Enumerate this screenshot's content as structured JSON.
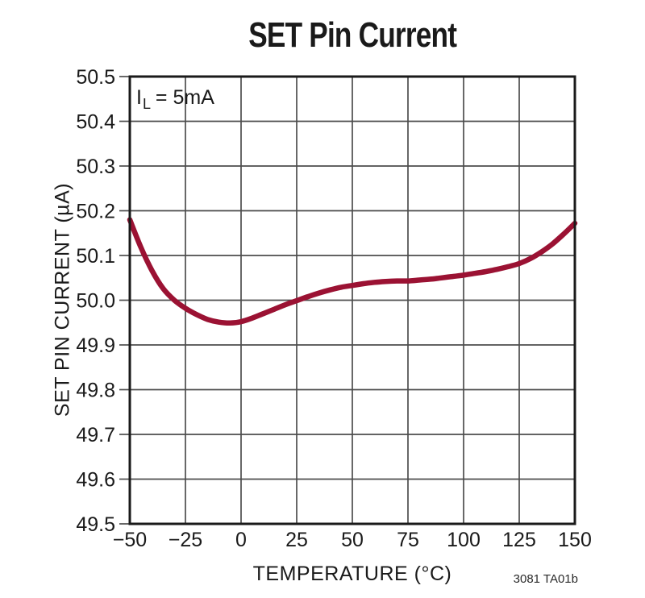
{
  "title": "SET Pin Current",
  "annotation": {
    "prefix": "I",
    "sub": "L",
    "suffix": " = 5mA"
  },
  "watermark": "3081 TA01b",
  "colors": {
    "curve": "#9B1233",
    "grid": "#4d4d4d",
    "frame": "#1a1a1a",
    "text": "#1a1a1a",
    "background": "#ffffff"
  },
  "chart_data": {
    "type": "line",
    "title": "SET Pin Current",
    "xlabel": "TEMPERATURE (°C)",
    "ylabel": "SET PIN CURRENT (µA)",
    "xlim": [
      -50,
      150
    ],
    "ylim": [
      49.5,
      50.5
    ],
    "grid": true,
    "legend_position": "none",
    "annotation": "IL = 5mA",
    "x_ticks": [
      -50,
      -25,
      0,
      25,
      50,
      75,
      100,
      125,
      150
    ],
    "x_tick_labels": [
      "−50",
      "−25",
      "0",
      "25",
      "50",
      "75",
      "100",
      "125",
      "150"
    ],
    "y_ticks": [
      49.5,
      49.6,
      49.7,
      49.8,
      49.9,
      50.0,
      50.1,
      50.2,
      50.3,
      50.4,
      50.5
    ],
    "y_tick_labels": [
      "49.5",
      "49.6",
      "49.7",
      "49.8",
      "49.9",
      "50.0",
      "50.1",
      "50.2",
      "50.3",
      "50.4",
      "50.5"
    ],
    "series": [
      {
        "name": "IL = 5mA",
        "color": "#9B1233",
        "x": [
          -50,
          -45,
          -40,
          -35,
          -30,
          -25,
          -20,
          -15,
          -10,
          -5,
          0,
          5,
          10,
          15,
          20,
          25,
          30,
          35,
          40,
          45,
          50,
          55,
          60,
          65,
          70,
          75,
          80,
          85,
          90,
          95,
          100,
          105,
          110,
          115,
          120,
          125,
          130,
          135,
          140,
          145,
          150
        ],
        "y": [
          50.18,
          50.118,
          50.066,
          50.026,
          50.0,
          49.982,
          49.968,
          49.957,
          49.951,
          49.949,
          49.952,
          49.96,
          49.97,
          49.98,
          49.99,
          49.999,
          50.008,
          50.016,
          50.023,
          50.029,
          50.033,
          50.037,
          50.04,
          50.042,
          50.043,
          50.043,
          50.045,
          50.047,
          50.05,
          50.053,
          50.056,
          50.06,
          50.064,
          50.069,
          50.075,
          50.082,
          50.093,
          50.108,
          50.126,
          50.148,
          50.172
        ]
      }
    ]
  }
}
